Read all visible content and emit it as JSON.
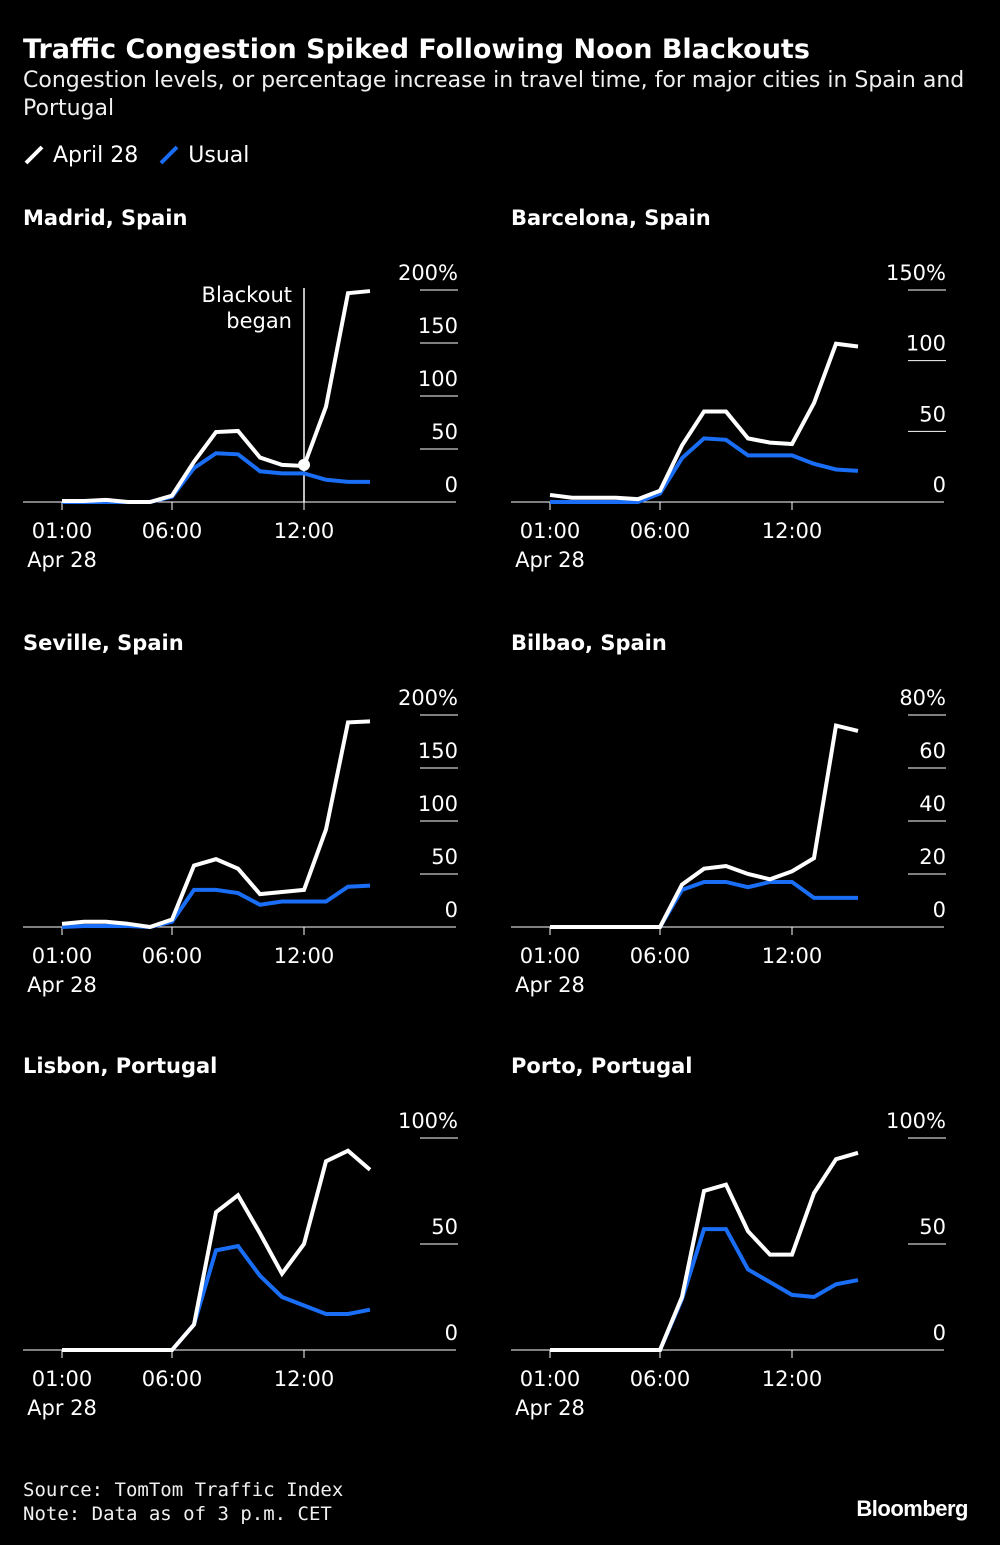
{
  "header": {
    "title": "Traffic Congestion Spiked Following Noon Blackouts",
    "subtitle": "Congestion levels, or percentage increase in travel time, for major cities in Spain and Portugal"
  },
  "legend": [
    {
      "name": "April 28",
      "color": "#ffffff"
    },
    {
      "name": "Usual",
      "color": "#1a6ef5"
    }
  ],
  "footer": {
    "source": "Source: TomTom Traffic Index",
    "note": "Note: Data as of 3 p.m. CET",
    "brand": "Bloomberg"
  },
  "chart_data": [
    {
      "type": "line",
      "title": "Madrid, Spain",
      "x": [
        1,
        2,
        3,
        4,
        5,
        6,
        7,
        8,
        9,
        10,
        11,
        12,
        13,
        14,
        15
      ],
      "xticks": [
        {
          "x": 1,
          "label": "01:00",
          "sublabel": "Apr 28"
        },
        {
          "x": 6,
          "label": "06:00",
          "sublabel": ""
        },
        {
          "x": 12,
          "label": "12:00",
          "sublabel": ""
        }
      ],
      "ylim": [
        0,
        200
      ],
      "yticks": [
        {
          "v": 200,
          "label": "200%"
        },
        {
          "v": 150,
          "label": "150"
        },
        {
          "v": 100,
          "label": "100"
        },
        {
          "v": 50,
          "label": "50"
        },
        {
          "v": 0,
          "label": "0"
        }
      ],
      "annotation": {
        "x": 12,
        "y": 35,
        "text": [
          "Blackout",
          "began"
        ]
      },
      "series": [
        {
          "name": "April 28",
          "values": [
            1,
            1,
            2,
            0,
            0,
            6,
            38,
            66,
            67,
            42,
            35,
            34,
            90,
            197,
            199
          ]
        },
        {
          "name": "Usual",
          "values": [
            0,
            0,
            0,
            0,
            0,
            5,
            32,
            46,
            45,
            29,
            27,
            27,
            21,
            19,
            19
          ]
        }
      ]
    },
    {
      "type": "line",
      "title": "Barcelona, Spain",
      "x": [
        1,
        2,
        3,
        4,
        5,
        6,
        7,
        8,
        9,
        10,
        11,
        12,
        13,
        14,
        15
      ],
      "xticks": [
        {
          "x": 1,
          "label": "01:00",
          "sublabel": "Apr 28"
        },
        {
          "x": 6,
          "label": "06:00",
          "sublabel": ""
        },
        {
          "x": 12,
          "label": "12:00",
          "sublabel": ""
        }
      ],
      "ylim": [
        0,
        150
      ],
      "yticks": [
        {
          "v": 150,
          "label": "150%"
        },
        {
          "v": 100,
          "label": "100"
        },
        {
          "v": 50,
          "label": "50"
        },
        {
          "v": 0,
          "label": "0"
        }
      ],
      "series": [
        {
          "name": "April 28",
          "values": [
            5,
            3,
            3,
            3,
            2,
            8,
            40,
            64,
            64,
            45,
            42,
            41,
            70,
            112,
            110
          ]
        },
        {
          "name": "Usual",
          "values": [
            0,
            0,
            0,
            0,
            0,
            6,
            31,
            45,
            44,
            33,
            33,
            33,
            27,
            23,
            22
          ]
        }
      ]
    },
    {
      "type": "line",
      "title": "Seville, Spain",
      "x": [
        1,
        2,
        3,
        4,
        5,
        6,
        7,
        8,
        9,
        10,
        11,
        12,
        13,
        14,
        15
      ],
      "xticks": [
        {
          "x": 1,
          "label": "01:00",
          "sublabel": "Apr 28"
        },
        {
          "x": 6,
          "label": "06:00",
          "sublabel": ""
        },
        {
          "x": 12,
          "label": "12:00",
          "sublabel": ""
        }
      ],
      "ylim": [
        0,
        200
      ],
      "yticks": [
        {
          "v": 200,
          "label": "200%"
        },
        {
          "v": 150,
          "label": "150"
        },
        {
          "v": 100,
          "label": "100"
        },
        {
          "v": 50,
          "label": "50"
        },
        {
          "v": 0,
          "label": "0"
        }
      ],
      "series": [
        {
          "name": "April 28",
          "values": [
            3,
            5,
            5,
            3,
            0,
            7,
            58,
            64,
            55,
            31,
            33,
            35,
            92,
            193,
            194
          ]
        },
        {
          "name": "Usual",
          "values": [
            0,
            1,
            1,
            1,
            0,
            5,
            35,
            35,
            32,
            21,
            24,
            24,
            24,
            38,
            39
          ]
        }
      ]
    },
    {
      "type": "line",
      "title": "Bilbao, Spain",
      "x": [
        1,
        2,
        3,
        4,
        5,
        6,
        7,
        8,
        9,
        10,
        11,
        12,
        13,
        14,
        15
      ],
      "xticks": [
        {
          "x": 1,
          "label": "01:00",
          "sublabel": "Apr 28"
        },
        {
          "x": 6,
          "label": "06:00",
          "sublabel": ""
        },
        {
          "x": 12,
          "label": "12:00",
          "sublabel": ""
        }
      ],
      "ylim": [
        0,
        80
      ],
      "yticks": [
        {
          "v": 80,
          "label": "80%"
        },
        {
          "v": 60,
          "label": "60"
        },
        {
          "v": 40,
          "label": "40"
        },
        {
          "v": 20,
          "label": "20"
        },
        {
          "v": 0,
          "label": "0"
        }
      ],
      "series": [
        {
          "name": "April 28",
          "values": [
            0,
            0,
            0,
            0,
            0,
            0,
            16,
            22,
            23,
            20,
            18,
            21,
            26,
            76,
            74
          ]
        },
        {
          "name": "Usual",
          "values": [
            0,
            0,
            0,
            0,
            0,
            0,
            14,
            17,
            17,
            15,
            17,
            17,
            11,
            11,
            11
          ]
        }
      ]
    },
    {
      "type": "line",
      "title": "Lisbon, Portugal",
      "x": [
        1,
        2,
        3,
        4,
        5,
        6,
        7,
        8,
        9,
        10,
        11,
        12,
        13,
        14,
        15
      ],
      "xticks": [
        {
          "x": 1,
          "label": "01:00",
          "sublabel": "Apr 28"
        },
        {
          "x": 6,
          "label": "06:00",
          "sublabel": ""
        },
        {
          "x": 12,
          "label": "12:00",
          "sublabel": ""
        }
      ],
      "ylim": [
        0,
        100
      ],
      "yticks": [
        {
          "v": 100,
          "label": "100%"
        },
        {
          "v": 50,
          "label": "50"
        },
        {
          "v": 0,
          "label": "0"
        }
      ],
      "series": [
        {
          "name": "April 28",
          "values": [
            0,
            0,
            0,
            0,
            0,
            0,
            12,
            65,
            73,
            55,
            36,
            50,
            89,
            94,
            85
          ]
        },
        {
          "name": "Usual",
          "values": [
            0,
            0,
            0,
            0,
            0,
            0,
            12,
            47,
            49,
            35,
            25,
            21,
            17,
            17,
            19
          ]
        }
      ]
    },
    {
      "type": "line",
      "title": "Porto, Portugal",
      "x": [
        1,
        2,
        3,
        4,
        5,
        6,
        7,
        8,
        9,
        10,
        11,
        12,
        13,
        14,
        15
      ],
      "xticks": [
        {
          "x": 1,
          "label": "01:00",
          "sublabel": "Apr 28"
        },
        {
          "x": 6,
          "label": "06:00",
          "sublabel": ""
        },
        {
          "x": 12,
          "label": "12:00",
          "sublabel": ""
        }
      ],
      "ylim": [
        0,
        100
      ],
      "yticks": [
        {
          "v": 100,
          "label": "100%"
        },
        {
          "v": 50,
          "label": "50"
        },
        {
          "v": 0,
          "label": "0"
        }
      ],
      "series": [
        {
          "name": "April 28",
          "values": [
            0,
            0,
            0,
            0,
            0,
            0,
            25,
            75,
            78,
            56,
            45,
            45,
            74,
            90,
            93
          ]
        },
        {
          "name": "Usual",
          "values": [
            0,
            0,
            0,
            0,
            0,
            0,
            24,
            57,
            57,
            38,
            32,
            26,
            25,
            31,
            33
          ]
        }
      ]
    }
  ]
}
